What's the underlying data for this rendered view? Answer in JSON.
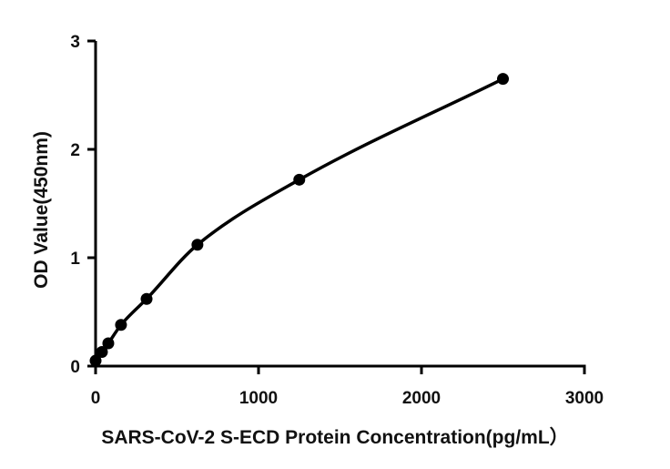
{
  "chart_data": {
    "type": "scatter",
    "title": "",
    "xlabel": "SARS-CoV-2 S-ECD Protein Concentration(pg/mL）",
    "ylabel": "OD Value(450nm)",
    "xlim": [
      0,
      3000
    ],
    "ylim": [
      0,
      3
    ],
    "xticks": [
      0,
      1000,
      2000,
      3000
    ],
    "yticks": [
      0,
      1,
      2,
      3
    ],
    "xtick_labels": [
      "0",
      "1000",
      "2000",
      "3000"
    ],
    "ytick_labels": [
      "0",
      "1",
      "2",
      "3"
    ],
    "grid": false,
    "legend": "none",
    "series": [
      {
        "points": [
          {
            "x": 0,
            "y": 0.05
          },
          {
            "x": 39,
            "y": 0.13
          },
          {
            "x": 78,
            "y": 0.21
          },
          {
            "x": 156,
            "y": 0.38
          },
          {
            "x": 313,
            "y": 0.62
          },
          {
            "x": 625,
            "y": 1.12
          },
          {
            "x": 1250,
            "y": 1.72
          },
          {
            "x": 2500,
            "y": 2.65
          }
        ],
        "fit_curve": true,
        "color": "#000000"
      }
    ]
  }
}
